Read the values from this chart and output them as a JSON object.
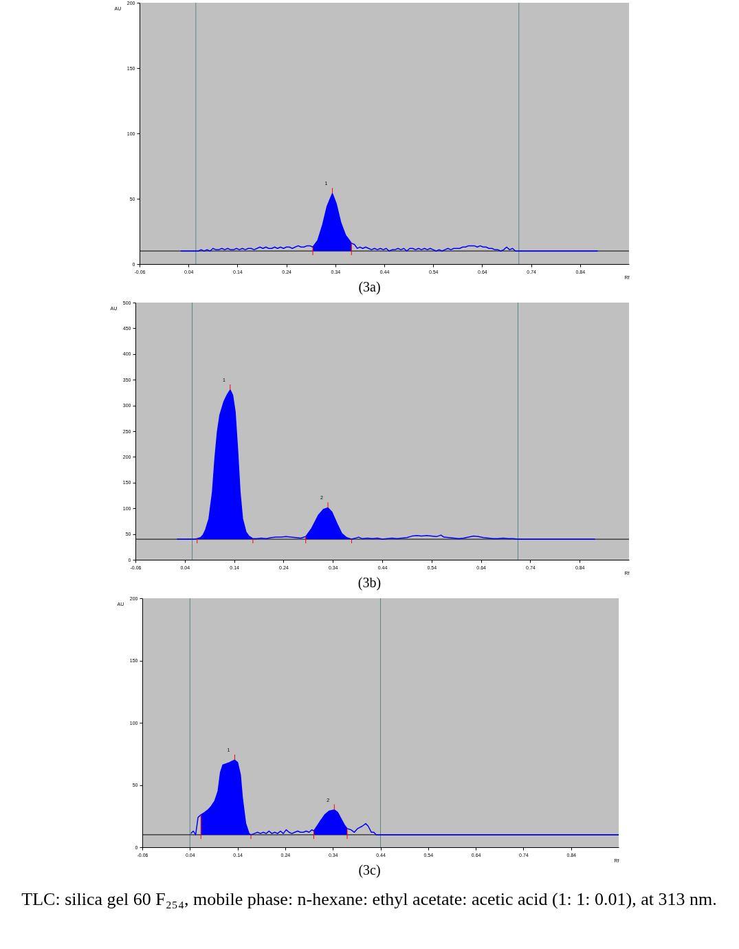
{
  "chart_data": [
    {
      "type": "line",
      "title": "(3a)",
      "xlabel": "Rf",
      "ylabel": "AU",
      "xlim": [
        -0.06,
        0.94
      ],
      "xticks": [
        -0.06,
        0.04,
        0.14,
        0.24,
        0.34,
        0.44,
        0.54,
        0.64,
        0.74,
        0.84
      ],
      "ylim": [
        0,
        200
      ],
      "yticks": [
        0,
        50,
        100,
        150,
        200
      ],
      "series": [
        {
          "color": "#0000ff",
          "x": [
            0.024,
            0.055,
            0.06,
            0.066,
            0.072,
            0.078,
            0.084,
            0.09,
            0.096,
            0.102,
            0.108,
            0.114,
            0.12,
            0.126,
            0.132,
            0.138,
            0.144,
            0.15,
            0.156,
            0.162,
            0.168,
            0.174,
            0.18,
            0.186,
            0.192,
            0.198,
            0.204,
            0.21,
            0.216,
            0.222,
            0.228,
            0.234,
            0.24,
            0.246,
            0.252,
            0.258,
            0.264,
            0.27,
            0.276,
            0.282,
            0.288,
            0.294,
            0.304,
            0.314,
            0.323,
            0.334,
            0.342,
            0.351,
            0.361,
            0.373,
            0.379,
            0.385,
            0.39,
            0.396,
            0.402,
            0.408,
            0.414,
            0.42,
            0.426,
            0.432,
            0.438,
            0.444,
            0.45,
            0.456,
            0.462,
            0.468,
            0.474,
            0.48,
            0.486,
            0.492,
            0.498,
            0.504,
            0.51,
            0.516,
            0.522,
            0.528,
            0.534,
            0.54,
            0.546,
            0.552,
            0.558,
            0.564,
            0.57,
            0.576,
            0.582,
            0.588,
            0.594,
            0.6,
            0.606,
            0.612,
            0.618,
            0.624,
            0.63,
            0.636,
            0.642,
            0.648,
            0.654,
            0.66,
            0.666,
            0.672,
            0.678,
            0.684,
            0.69,
            0.696,
            0.702,
            0.708,
            0.714,
            0.876
          ],
          "values": [
            10,
            10,
            10,
            11,
            10,
            11,
            10,
            12,
            11,
            11,
            12,
            11,
            12,
            11,
            11,
            12,
            11,
            12,
            11,
            12,
            12,
            11,
            12,
            13,
            12,
            13,
            12,
            12,
            13,
            12,
            13,
            12,
            13,
            13,
            12,
            13,
            14,
            13,
            13,
            14,
            14,
            13,
            18,
            30,
            44,
            54,
            46,
            32,
            22,
            16,
            15,
            12,
            13,
            12,
            13,
            12,
            11,
            12,
            11,
            12,
            11,
            12,
            10,
            11,
            11,
            12,
            11,
            12,
            10,
            12,
            12,
            11,
            12,
            11,
            12,
            11,
            12,
            11,
            10,
            11,
            10,
            11,
            12,
            11,
            12,
            12,
            12,
            13,
            13,
            14,
            14,
            14,
            13,
            14,
            13,
            13,
            12,
            12,
            11,
            11,
            10,
            11,
            13,
            11,
            12,
            10,
            10,
            10
          ],
          "lower": [
            null,
            null,
            null,
            null,
            null,
            null,
            null,
            null,
            null,
            null,
            null,
            null,
            null,
            null,
            null,
            null,
            null,
            null,
            null,
            null,
            null,
            null,
            null,
            null,
            null,
            null,
            null,
            null,
            null,
            null,
            null,
            null,
            null,
            null,
            null,
            null,
            null,
            null,
            null,
            null,
            null,
            10,
            10,
            10,
            10,
            10,
            10,
            10,
            10,
            10,
            null,
            null,
            null,
            null,
            null,
            null,
            null,
            null,
            null,
            null,
            null,
            null,
            null,
            null,
            null,
            null,
            null,
            null,
            null,
            null,
            null,
            null,
            null,
            null,
            null,
            null,
            null,
            null,
            null,
            null,
            null,
            null,
            null,
            null,
            null,
            null,
            null,
            null,
            null,
            null,
            null,
            null,
            null,
            null,
            null,
            null,
            null,
            null,
            null,
            null,
            null,
            null,
            null,
            null,
            null,
            null,
            null,
            null
          ],
          "upper": [
            null,
            null,
            null,
            null,
            null,
            null,
            null,
            null,
            null,
            null,
            null,
            null,
            null,
            null,
            null,
            null,
            null,
            null,
            null,
            null,
            null,
            null,
            null,
            null,
            null,
            null,
            null,
            null,
            null,
            null,
            null,
            null,
            null,
            null,
            null,
            null,
            null,
            null,
            null,
            null,
            null,
            13,
            18,
            30,
            44,
            54,
            46,
            32,
            22,
            16,
            null,
            null,
            null,
            null,
            null,
            null,
            null,
            null,
            null,
            null,
            null,
            null,
            null,
            null,
            null,
            null,
            null,
            null,
            null,
            null,
            null,
            null,
            null,
            null,
            null,
            null,
            null,
            null,
            null,
            null,
            null,
            null,
            null,
            null,
            null,
            null,
            null,
            null,
            null,
            null,
            null,
            null,
            null,
            null,
            null,
            null,
            null,
            null,
            null,
            null,
            null,
            null,
            null,
            null,
            null,
            null,
            null,
            null
          ]
        }
      ],
      "ref_lines": [
        {
          "axis": "x",
          "value": 0.055,
          "color": "#5b8585"
        },
        {
          "axis": "x",
          "value": 0.715,
          "color": "#5b8585"
        },
        {
          "axis": "y",
          "value": 10,
          "color": "#000000"
        }
      ],
      "annotations": [
        {
          "text": "1",
          "x": 0.334,
          "y": 54
        }
      ]
    },
    {
      "type": "line",
      "title": "(3b)",
      "xlabel": "Rf",
      "ylabel": "AU",
      "xlim": [
        -0.06,
        0.94
      ],
      "xticks": [
        -0.06,
        0.04,
        0.14,
        0.24,
        0.34,
        0.44,
        0.54,
        0.64,
        0.74,
        0.84
      ],
      "ylim": [
        0,
        500
      ],
      "yticks": [
        0,
        50,
        100,
        150,
        200,
        250,
        300,
        350,
        400,
        450,
        500
      ],
      "series": [
        {
          "color": "#0000ff",
          "x": [
            0.024,
            0.055,
            0.06,
            0.065,
            0.072,
            0.077,
            0.082,
            0.089,
            0.096,
            0.101,
            0.106,
            0.111,
            0.119,
            0.126,
            0.132,
            0.137,
            0.142,
            0.147,
            0.152,
            0.157,
            0.164,
            0.17,
            0.178,
            0.186,
            0.195,
            0.205,
            0.215,
            0.225,
            0.235,
            0.245,
            0.255,
            0.265,
            0.275,
            0.285,
            0.297,
            0.311,
            0.321,
            0.33,
            0.338,
            0.348,
            0.358,
            0.368,
            0.378,
            0.386,
            0.392,
            0.4,
            0.41,
            0.42,
            0.43,
            0.44,
            0.45,
            0.46,
            0.47,
            0.48,
            0.49,
            0.5,
            0.51,
            0.52,
            0.53,
            0.54,
            0.55,
            0.559,
            0.565,
            0.575,
            0.585,
            0.595,
            0.605,
            0.615,
            0.625,
            0.635,
            0.645,
            0.655,
            0.665,
            0.675,
            0.685,
            0.695,
            0.705,
            0.715,
            0.871
          ],
          "values": [
            40,
            40,
            40,
            41,
            43,
            48,
            58,
            80,
            132,
            197,
            249,
            281,
            307,
            321,
            330,
            320,
            288,
            216,
            132,
            80,
            54,
            46,
            41,
            41,
            42,
            41,
            43,
            44,
            44,
            45,
            44,
            43,
            42,
            45,
            61,
            87,
            98,
            101,
            93,
            71,
            51,
            43,
            40,
            42,
            44,
            41,
            42,
            41,
            42,
            40,
            41,
            42,
            41,
            42,
            43,
            46,
            47,
            46,
            47,
            46,
            45,
            48,
            44,
            43,
            42,
            41,
            42,
            44,
            46,
            45,
            43,
            42,
            41,
            41,
            42,
            41,
            41,
            40,
            40
          ],
          "lower": [
            null,
            null,
            null,
            40,
            40,
            40,
            40,
            40,
            40,
            40,
            40,
            40,
            40,
            40,
            40,
            40,
            40,
            40,
            40,
            40,
            40,
            40,
            40,
            null,
            null,
            null,
            null,
            null,
            null,
            null,
            null,
            null,
            null,
            40,
            40,
            40,
            40,
            40,
            40,
            40,
            40,
            40,
            40,
            null,
            null,
            null,
            null,
            null,
            null,
            null,
            null,
            null,
            null,
            null,
            null,
            null,
            null,
            null,
            null,
            null,
            null,
            null,
            null,
            null,
            null,
            null,
            null,
            null,
            null,
            null,
            null,
            null,
            null,
            null,
            null,
            null,
            null,
            null,
            null
          ],
          "upper": [
            null,
            null,
            null,
            41,
            43,
            48,
            58,
            80,
            132,
            197,
            249,
            281,
            307,
            321,
            330,
            320,
            288,
            216,
            132,
            80,
            54,
            46,
            41,
            null,
            null,
            null,
            null,
            null,
            null,
            null,
            null,
            null,
            null,
            45,
            61,
            87,
            98,
            101,
            93,
            71,
            51,
            43,
            40,
            null,
            null,
            null,
            null,
            null,
            null,
            null,
            null,
            null,
            null,
            null,
            null,
            null,
            null,
            null,
            null,
            null,
            null,
            null,
            null,
            null,
            null,
            null,
            null,
            null,
            null,
            null,
            null,
            null,
            null,
            null,
            null,
            null,
            null,
            null,
            null
          ]
        }
      ],
      "ref_lines": [
        {
          "axis": "x",
          "value": 0.055,
          "color": "#5b8585"
        },
        {
          "axis": "x",
          "value": 0.715,
          "color": "#5b8585"
        },
        {
          "axis": "y",
          "value": 40,
          "color": "#000000"
        }
      ],
      "annotations": [
        {
          "text": "1",
          "x": 0.132,
          "y": 330
        },
        {
          "text": "2",
          "x": 0.33,
          "y": 101
        }
      ]
    },
    {
      "type": "line",
      "title": "(3c)",
      "xlabel": "Rf",
      "ylabel": "AU",
      "xlim": [
        -0.06,
        0.94
      ],
      "xticks": [
        -0.06,
        0.04,
        0.14,
        0.24,
        0.34,
        0.44,
        0.54,
        0.64,
        0.74,
        0.84
      ],
      "ylim": [
        0,
        200
      ],
      "yticks": [
        0,
        50,
        100,
        150,
        200
      ],
      "series": [
        {
          "color": "#0000ff",
          "x": [
            0.042,
            0.047,
            0.052,
            0.057,
            0.063,
            0.071,
            0.078,
            0.085,
            0.092,
            0.099,
            0.104,
            0.109,
            0.116,
            0.123,
            0.128,
            0.134,
            0.14,
            0.146,
            0.15,
            0.157,
            0.164,
            0.168,
            0.175,
            0.182,
            0.188,
            0.194,
            0.2,
            0.206,
            0.212,
            0.218,
            0.224,
            0.23,
            0.236,
            0.242,
            0.248,
            0.254,
            0.26,
            0.266,
            0.272,
            0.278,
            0.284,
            0.29,
            0.296,
            0.3,
            0.312,
            0.323,
            0.332,
            0.343,
            0.35,
            0.357,
            0.364,
            0.37,
            0.378,
            0.385,
            0.392,
            0.402,
            0.409,
            0.414,
            0.421,
            0.426,
            0.431,
            0.438,
            0.94
          ],
          "values": [
            11,
            13,
            10,
            24,
            26,
            28,
            30,
            33,
            37,
            45,
            60,
            66,
            67,
            68,
            69,
            70,
            68,
            58,
            40,
            19,
            11,
            10,
            11,
            12,
            11,
            12,
            11,
            13,
            11,
            12,
            11,
            13,
            11,
            14,
            12,
            11,
            12,
            13,
            12,
            12,
            13,
            12,
            14,
            13,
            20,
            26,
            29,
            30,
            28,
            23,
            18,
            15,
            14,
            12,
            15,
            17,
            19,
            17,
            12,
            12,
            10,
            10,
            10
          ],
          "lower": [
            null,
            null,
            null,
            null,
            10,
            10,
            10,
            10,
            10,
            10,
            10,
            10,
            10,
            10,
            10,
            10,
            10,
            10,
            10,
            10,
            10,
            10,
            null,
            null,
            null,
            null,
            null,
            null,
            null,
            null,
            null,
            null,
            null,
            null,
            null,
            null,
            null,
            null,
            null,
            null,
            null,
            null,
            null,
            10,
            10,
            10,
            10,
            10,
            10,
            10,
            10,
            10,
            null,
            null,
            null,
            null,
            null,
            null,
            null,
            null,
            null,
            null,
            null
          ],
          "upper": [
            null,
            null,
            null,
            null,
            26,
            28,
            30,
            33,
            37,
            45,
            60,
            66,
            67,
            68,
            69,
            70,
            68,
            58,
            40,
            19,
            11,
            10,
            null,
            null,
            null,
            null,
            null,
            null,
            null,
            null,
            null,
            null,
            null,
            null,
            null,
            null,
            null,
            null,
            null,
            null,
            null,
            null,
            null,
            13,
            20,
            26,
            29,
            30,
            28,
            23,
            18,
            15,
            null,
            null,
            null,
            null,
            null,
            null,
            null,
            null,
            null,
            null,
            null
          ]
        }
      ],
      "ref_lines": [
        {
          "axis": "x",
          "value": 0.04,
          "color": "#5b8585"
        },
        {
          "axis": "x",
          "value": 0.44,
          "color": "#5b8585"
        },
        {
          "axis": "y",
          "value": 10,
          "color": "#000000"
        }
      ],
      "annotations": [
        {
          "text": "1",
          "x": 0.134,
          "y": 70
        },
        {
          "text": "2",
          "x": 0.343,
          "y": 30
        },
        "TLC: silica gel 60 F₂₅₄, mobile phase: n-hexane: ethyl acetate: acetic acid (1: 1: 0.01), at 313 nm."
      ]
    }
  ]
}
